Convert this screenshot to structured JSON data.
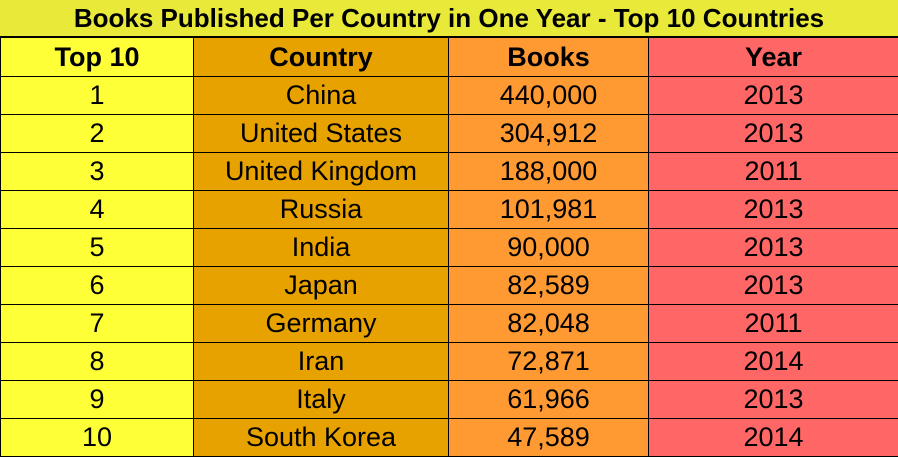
{
  "chart_data": {
    "type": "table",
    "title": "Books Published Per Country in One Year - Top 10 Countries",
    "columns": [
      "Top 10",
      "Country",
      "Books",
      "Year"
    ],
    "rows": [
      [
        "1",
        "China",
        "440,000",
        "2013"
      ],
      [
        "2",
        "United States",
        "304,912",
        "2013"
      ],
      [
        "3",
        "United Kingdom",
        "188,000",
        "2011"
      ],
      [
        "4",
        "Russia",
        "101,981",
        "2013"
      ],
      [
        "5",
        "India",
        "90,000",
        "2013"
      ],
      [
        "6",
        "Japan",
        "82,589",
        "2013"
      ],
      [
        "7",
        "Germany",
        "82,048",
        "2011"
      ],
      [
        "8",
        "Iran",
        "72,871",
        "2014"
      ],
      [
        "9",
        "Italy",
        "61,966",
        "2013"
      ],
      [
        "10",
        "South Korea",
        "47,589",
        "2014"
      ]
    ],
    "colors": {
      "title_bg": "#e9e93a",
      "rank_col": "#ffff38",
      "country_col": "#e8a200",
      "books_col": "#ff9a33",
      "year_col": "#ff6666"
    }
  }
}
